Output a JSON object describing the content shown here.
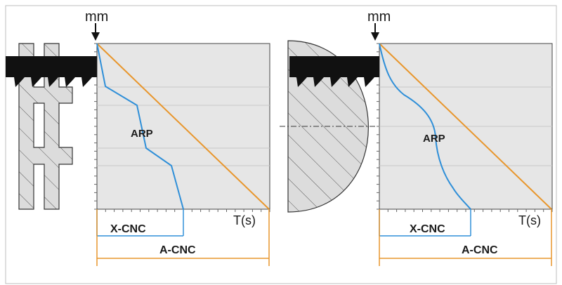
{
  "panels": [
    {
      "id": "left",
      "axis_unit_label": "mm",
      "time_axis_label": "T(s)",
      "curve_label": "ARP",
      "short_span_label": "X-CNC",
      "long_span_label": "A-CNC"
    },
    {
      "id": "right",
      "axis_unit_label": "mm",
      "time_axis_label": "T(s)",
      "curve_label": "ARP",
      "short_span_label": "X-CNC",
      "long_span_label": "A-CNC"
    }
  ],
  "colors": {
    "plot_background": "#e6e6e6",
    "grid_line": "#c8c8c8",
    "arp_curve": "#2f8fd8",
    "cnc_line": "#e8962c",
    "blade": "#111111",
    "workpiece_fill": "#dcdcdc",
    "workpiece_hatch": "#555555"
  }
}
